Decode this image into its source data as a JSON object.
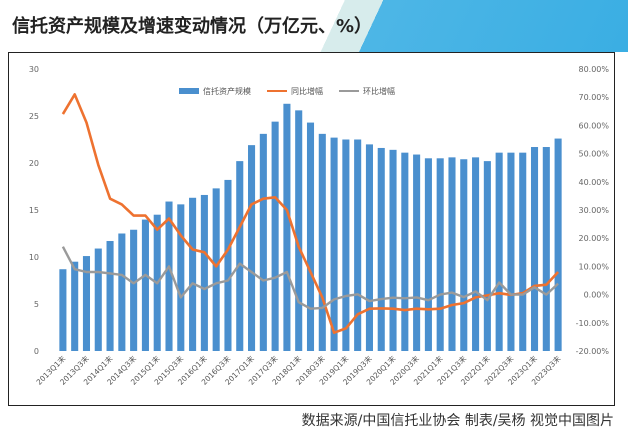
{
  "title": "信托资产规模及增速变动情况（万亿元、%）",
  "footer": "数据来源/中国信托业协会  制表/吴杨  视觉中国图片",
  "chart_data": {
    "type": "bar+line",
    "title": "信托资产规模及增速变动情况（万亿元、%）",
    "legend": [
      "信托资产规模",
      "同比增幅",
      "环比增幅"
    ],
    "legend_position": "top-center",
    "colors": {
      "bar": "#4a8fce",
      "yoy": "#ee7230",
      "qoq": "#9a9a9a"
    },
    "left_axis": {
      "ylim": [
        0,
        30
      ],
      "ticks": [
        "0",
        "5",
        "10",
        "15",
        "20",
        "25",
        "30"
      ]
    },
    "right_axis": {
      "ylim": [
        -20,
        80
      ],
      "ticks": [
        "-20.00%",
        "-10.00%",
        "0.00%",
        "10.00%",
        "20.00%",
        "30.00%",
        "40.00%",
        "50.00%",
        "60.00%",
        "70.00%",
        "80.00%"
      ]
    },
    "x_labels": [
      "2013Q1末",
      "2013Q3末",
      "2014Q1末",
      "2014Q3末",
      "2015Q1末",
      "2015Q3末",
      "2016Q1末",
      "2016Q3末",
      "2017Q1末",
      "2017Q3末",
      "2018Q1末",
      "2018Q3末",
      "2019Q1末",
      "2019Q3末",
      "2020Q1末",
      "2020Q3末",
      "2021Q1末",
      "2021Q3末",
      "2022Q1末",
      "2022Q3末",
      "2023Q1末",
      "2023Q3末"
    ],
    "series": [
      {
        "name": "信托资产规模",
        "type": "bar",
        "axis": "left",
        "values": [
          8.7,
          9.5,
          10.1,
          10.9,
          11.7,
          12.5,
          12.9,
          13.98,
          14.5,
          15.9,
          15.6,
          16.3,
          16.6,
          17.3,
          18.2,
          20.2,
          21.9,
          23.1,
          24.4,
          26.3,
          25.6,
          24.3,
          23.1,
          22.7,
          22.5,
          22.5,
          21.98,
          21.6,
          21.4,
          21.1,
          20.9,
          20.5,
          20.5,
          20.6,
          20.4,
          20.6,
          20.2,
          21.1,
          21.1,
          21.1,
          21.7,
          21.7,
          22.6
        ]
      },
      {
        "name": "同比增幅",
        "type": "line",
        "axis": "right",
        "values": [
          64,
          71,
          61,
          46,
          34,
          32,
          28,
          28,
          23,
          27,
          21,
          16,
          15,
          10,
          16,
          24,
          32,
          34,
          34.5,
          30,
          17,
          8,
          -1,
          -13.5,
          -12,
          -7,
          -5,
          -4.9,
          -5,
          -5.5,
          -5,
          -5.2,
          -5,
          -3.7,
          -3,
          -1,
          -0.3,
          0.5,
          -0.1,
          0.5,
          3.1,
          3.5,
          8
        ]
      },
      {
        "name": "环比增幅",
        "type": "line",
        "axis": "right",
        "values": [
          17,
          9,
          8,
          8,
          7.5,
          7,
          4,
          7,
          4,
          10,
          -1,
          4,
          2,
          4,
          5,
          11,
          8,
          5,
          6,
          8,
          -2.7,
          -5,
          -4.7,
          -1.7,
          -0.5,
          0.1,
          -2.3,
          -1.6,
          -1.1,
          -1.3,
          -1,
          -2,
          0,
          0.7,
          -0.9,
          1.1,
          -2,
          4.3,
          0,
          0,
          2.6,
          0,
          3.9
        ]
      }
    ]
  }
}
